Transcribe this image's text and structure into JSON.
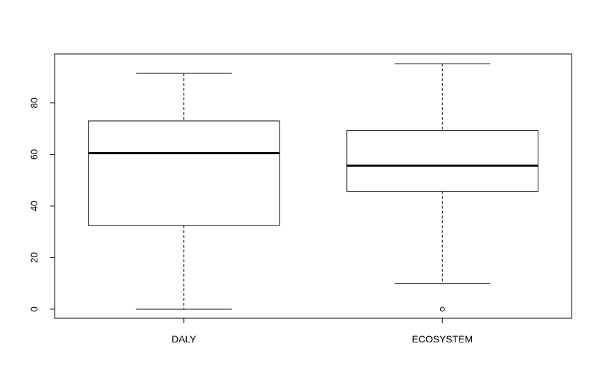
{
  "chart_data": {
    "type": "box",
    "title": "",
    "xlabel": "",
    "ylabel": "",
    "ylim": [
      -3.5,
      99
    ],
    "yticks": [
      0,
      20,
      40,
      60,
      80
    ],
    "grid": false,
    "categories": [
      "DALY",
      "ECOSYSTEM"
    ],
    "boxes": [
      {
        "category": "DALY",
        "whisker_low": 0,
        "q1": 32.5,
        "median": 60.5,
        "q3": 73,
        "whisker_high": 91.5,
        "outliers": []
      },
      {
        "category": "ECOSYSTEM",
        "whisker_low": 10,
        "q1": 45.7,
        "median": 55.7,
        "q3": 69.3,
        "whisker_high": 95.2,
        "outliers": [
          0
        ]
      }
    ]
  }
}
